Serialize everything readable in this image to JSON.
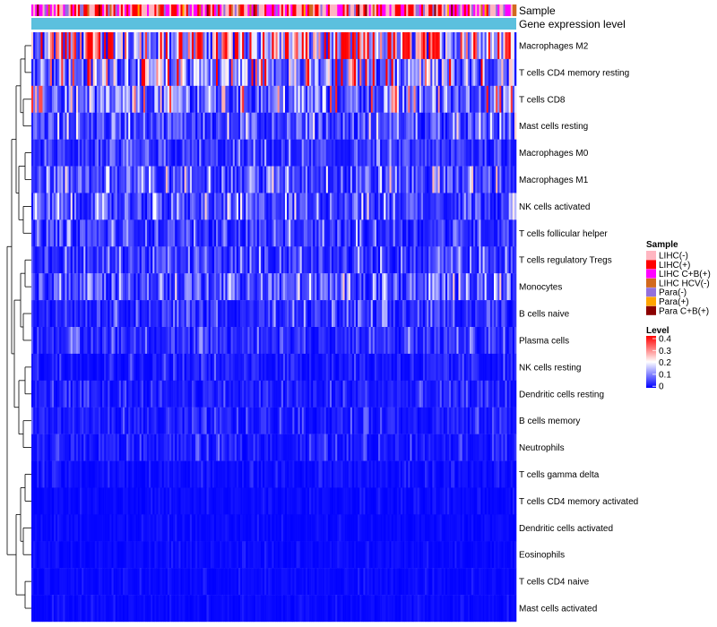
{
  "chart_data": {
    "type": "heatmap",
    "title": "",
    "annotation_tracks": [
      "Sample",
      "Gene expression level"
    ],
    "rows": [
      {
        "name": "Macrophages M2",
        "mean": 0.3
      },
      {
        "name": "T cells CD4 memory resting",
        "mean": 0.17
      },
      {
        "name": "T cells CD8",
        "mean": 0.13
      },
      {
        "name": "Mast cells resting",
        "mean": 0.08
      },
      {
        "name": "Macrophages M0",
        "mean": 0.05
      },
      {
        "name": "Macrophages M1",
        "mean": 0.09
      },
      {
        "name": "NK cells activated",
        "mean": 0.08
      },
      {
        "name": "T cells follicular helper",
        "mean": 0.06
      },
      {
        "name": "T cells regulatory  Tregs",
        "mean": 0.06
      },
      {
        "name": "Monocytes",
        "mean": 0.09
      },
      {
        "name": "B cells naive",
        "mean": 0.05
      },
      {
        "name": "Plasma cells",
        "mean": 0.05
      },
      {
        "name": "NK cells resting",
        "mean": 0.03
      },
      {
        "name": "Dendritic cells resting",
        "mean": 0.03
      },
      {
        "name": "B cells memory",
        "mean": 0.03
      },
      {
        "name": "Neutrophils",
        "mean": 0.03
      },
      {
        "name": "T cells gamma delta",
        "mean": 0.015
      },
      {
        "name": "T cells CD4 memory activated",
        "mean": 0.01
      },
      {
        "name": "Dendritic cells activated",
        "mean": 0.01
      },
      {
        "name": "Eosinophils",
        "mean": 0.01
      },
      {
        "name": "T cells CD4 naive",
        "mean": 0.01
      },
      {
        "name": "Mast cells activated",
        "mean": 0.01
      }
    ],
    "n_columns": 260,
    "legend": {
      "sample_title": "Sample",
      "sample_groups": [
        {
          "label": "LIHC(-)",
          "color": "#ffb6c1"
        },
        {
          "label": "LIHC(+)",
          "color": "#ff0000"
        },
        {
          "label": "LIHC C+B(+)",
          "color": "#ff00ff"
        },
        {
          "label": "LIHC HCV(-)",
          "color": "#d2691e"
        },
        {
          "label": "Para(-)",
          "color": "#9370db"
        },
        {
          "label": "Para(+)",
          "color": "#ffa500"
        },
        {
          "label": "Para C+B(+)",
          "color": "#8b0000"
        }
      ],
      "level_title": "Level",
      "level_ticks": [
        "0.4",
        "0.3",
        "0.2",
        "0.1",
        "0"
      ],
      "color_scale": {
        "low": "#0000ff",
        "mid": "#ffffff",
        "high": "#ff0000",
        "min": 0,
        "max": 0.4
      }
    },
    "expression_track_color": "#5bc0de"
  }
}
